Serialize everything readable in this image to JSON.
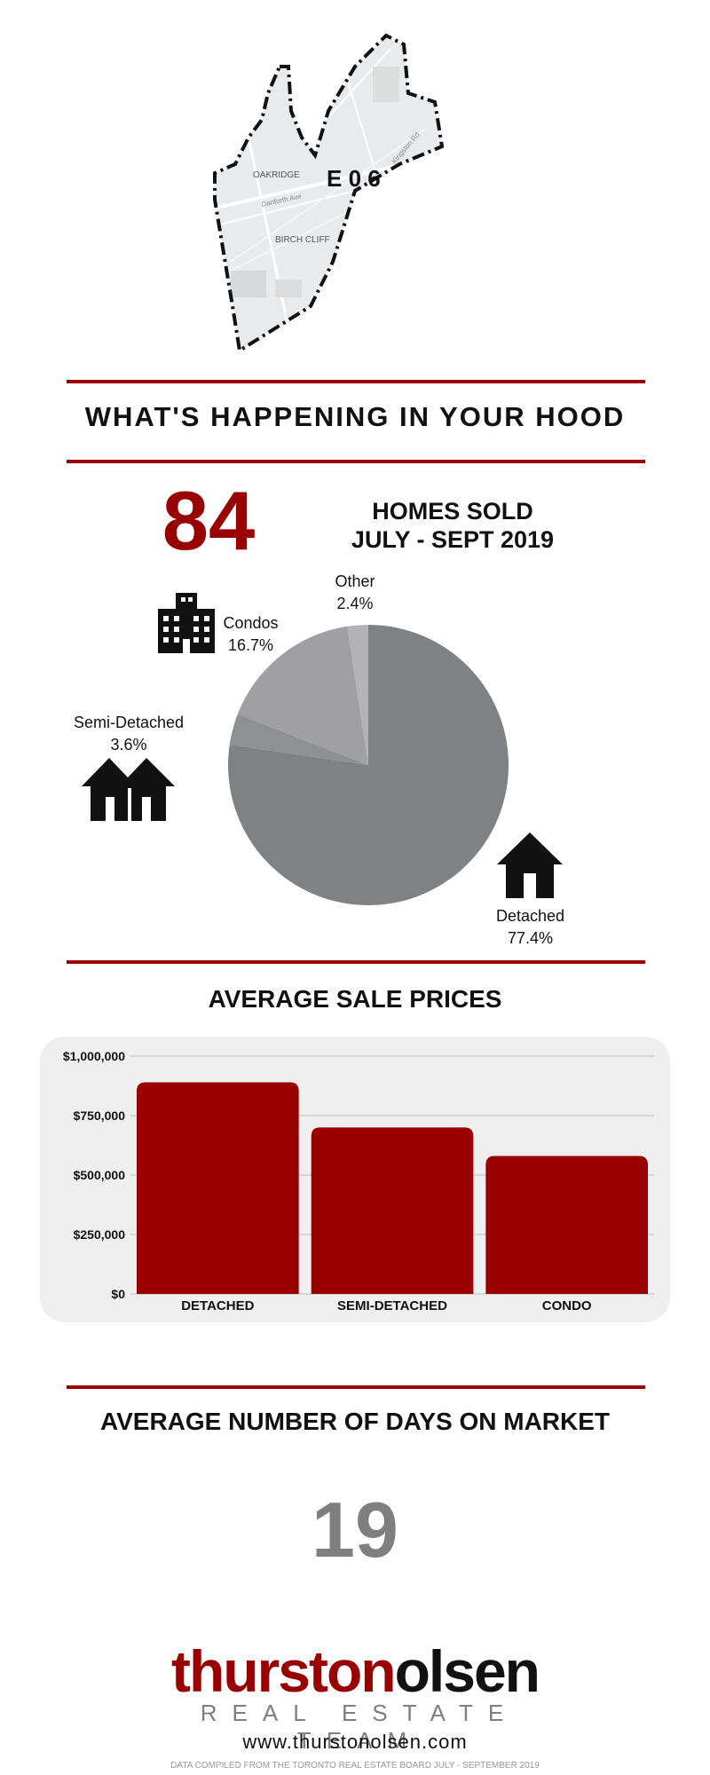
{
  "map": {
    "district_code": "E 0 6",
    "labels": [
      "OAKRIDGE",
      "BIRCH CLIFF",
      "Danforth Ave",
      "Kingston Rd"
    ]
  },
  "headline": "WHAT'S HAPPENING IN YOUR HOOD",
  "homes_sold": {
    "count": "84",
    "line1": "HOMES SOLD",
    "line2": "JULY - SEPT 2019"
  },
  "pie_labels": {
    "other": {
      "name": "Other",
      "pct": "2.4%"
    },
    "condos": {
      "name": "Condos",
      "pct": "16.7%"
    },
    "semi": {
      "name": "Semi-Detached",
      "pct": "3.6%"
    },
    "detached": {
      "name": "Detached",
      "pct": "77.4%"
    }
  },
  "avg_sale_title": "AVERAGE SALE PRICES",
  "days_title": "AVERAGE NUMBER OF DAYS ON MARKET",
  "days_value": "19",
  "logo": {
    "part1": "thurston",
    "part2": "olsen",
    "sub": "REAL ESTATE TEAM"
  },
  "website": "www.thurstonolsen.com",
  "footnote": "DATA COMPILED FROM THE TORONTO REAL ESTATE BOARD JULY - SEPTEMBER 2019",
  "colors": {
    "accent": "#990000",
    "pie_detached": "#7f8183",
    "pie_semi": "#8f9092",
    "pie_condos": "#a0a0a3",
    "pie_other": "#b3b3b5"
  },
  "chart_data": [
    {
      "type": "pie",
      "categories": [
        "Detached",
        "Semi-Detached",
        "Condos",
        "Other"
      ],
      "values": [
        77.4,
        3.6,
        16.7,
        2.4
      ]
    },
    {
      "type": "bar",
      "title": "AVERAGE SALE PRICES",
      "categories": [
        "DETACHED",
        "SEMI-DETACHED",
        "CONDO"
      ],
      "values": [
        890000,
        700000,
        580000
      ],
      "ylim": [
        0,
        1000000
      ],
      "yticks": [
        0,
        250000,
        500000,
        750000,
        1000000
      ],
      "ytick_labels": [
        "$0",
        "$250,000",
        "$500,000",
        "$750,000",
        "$1,000,000"
      ],
      "grid": true
    }
  ]
}
